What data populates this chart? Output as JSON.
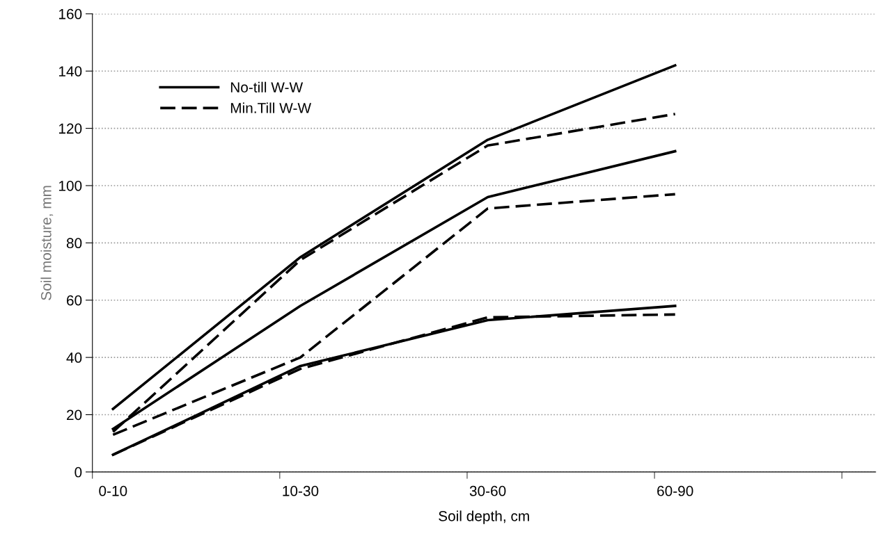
{
  "chart_data": {
    "type": "line",
    "xlabel": "Soil depth, cm",
    "ylabel": "Soil moisture, mm",
    "categories": [
      "0-10",
      "10-30",
      "30-60",
      "60-90"
    ],
    "ylim": [
      0,
      160
    ],
    "yticks": [
      0,
      20,
      40,
      60,
      80,
      100,
      120,
      140,
      160
    ],
    "grid": "y",
    "legend": "top left",
    "marker": "none",
    "series": [
      {
        "name": "No-till W-W",
        "color": "#000000",
        "line_style": "solid",
        "values": [
          22,
          75,
          116,
          142
        ]
      },
      {
        "name": "Min.Till W-W",
        "color": "#000000",
        "line_style": "dashed",
        "values": [
          14,
          74,
          114,
          125
        ]
      },
      {
        "color": "#000000",
        "line_style": "solid",
        "values": [
          15,
          58,
          96,
          112
        ]
      },
      {
        "color": "#000000",
        "line_style": "dashed",
        "values": [
          13,
          40,
          92,
          97
        ]
      },
      {
        "color": "#000000",
        "line_style": "solid",
        "values": [
          6,
          37,
          53,
          58
        ]
      },
      {
        "color": "#000000",
        "line_style": "dashed",
        "values": [
          6,
          36,
          54,
          55
        ]
      }
    ]
  }
}
